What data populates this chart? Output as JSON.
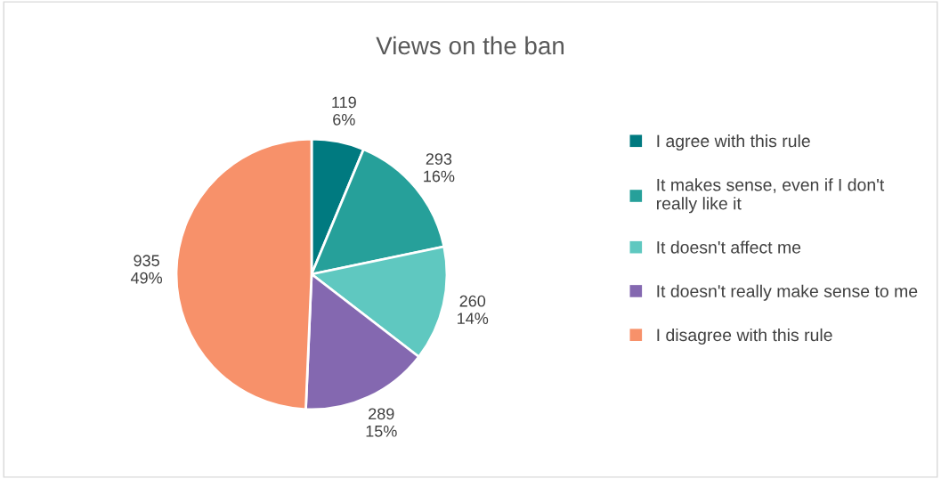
{
  "chart_data": {
    "type": "pie",
    "title": "Views on the ban",
    "categories": [
      "I agree with this rule",
      "It makes sense, even if I don't really like it",
      "It doesn't affect me",
      "It doesn't really make sense to me",
      "I disagree with this rule"
    ],
    "values": [
      119,
      293,
      260,
      289,
      935
    ],
    "colors": [
      "#007a80",
      "#26a09a",
      "#5fc8c0",
      "#8468b0",
      "#f7916a"
    ],
    "value_labels": [
      "119\n6%",
      "293\n16%",
      "260\n14%",
      "289\n15%",
      "935\n49%"
    ],
    "legend": "right"
  }
}
